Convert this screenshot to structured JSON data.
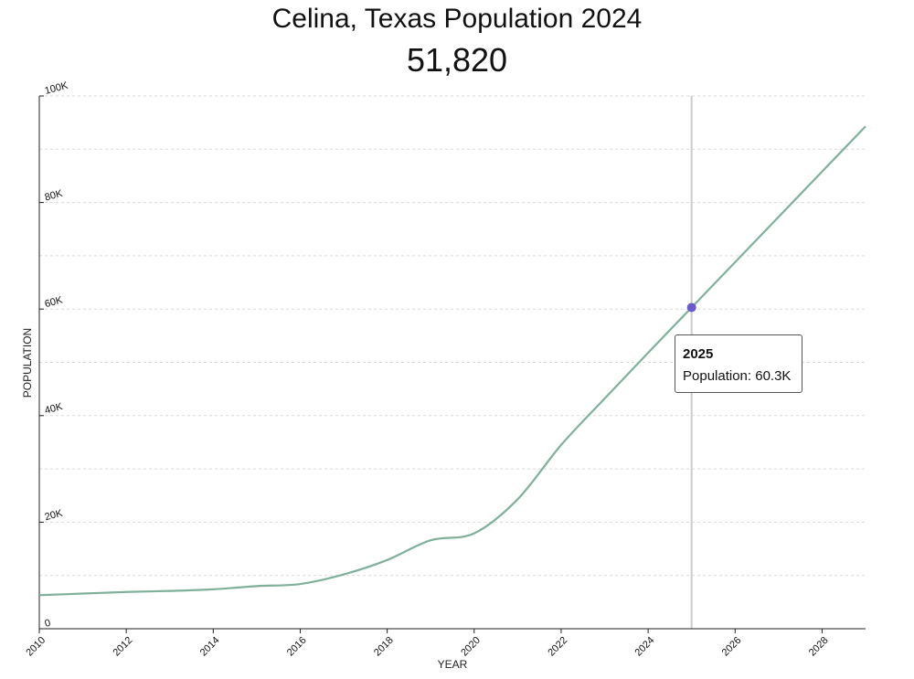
{
  "header": {
    "title": "Celina, Texas Population 2024",
    "value": "51,820"
  },
  "tooltip": {
    "year": "2025",
    "label": "Population:",
    "value": "60.3K"
  },
  "colors": {
    "line": "#7fb09a",
    "marker": "#6a5acd",
    "crosshair": "#cccccc"
  },
  "chart_data": {
    "type": "line",
    "title": "Celina, Texas Population 2024",
    "xlabel": "YEAR",
    "ylabel": "POPULATION",
    "xlim": [
      2010,
      2029
    ],
    "ylim": [
      0,
      100000
    ],
    "x_ticks": [
      2010,
      2012,
      2014,
      2016,
      2018,
      2020,
      2022,
      2024,
      2026,
      2028
    ],
    "x_tick_labels": [
      "2010",
      "2012",
      "2014",
      "2016",
      "2018",
      "2020",
      "2022",
      "2024",
      "2026",
      "2028"
    ],
    "y_ticks": [
      0,
      20000,
      40000,
      60000,
      80000,
      100000
    ],
    "y_tick_labels": [
      "0",
      "20K",
      "40K",
      "60K",
      "80K",
      "100K"
    ],
    "grid": true,
    "series": [
      {
        "x": [
          2010,
          2011,
          2012,
          2013,
          2014,
          2015,
          2016,
          2017,
          2018,
          2019,
          2020,
          2021,
          2022,
          2023,
          2024,
          2025,
          2026,
          2027,
          2028,
          2029
        ],
        "values": [
          6300,
          6600,
          6900,
          7100,
          7400,
          8000,
          8400,
          10200,
          12900,
          16600,
          17900,
          24300,
          34500,
          43200,
          51800,
          60300,
          68800,
          77300,
          85800,
          94300
        ]
      }
    ],
    "highlight": {
      "x": 2025,
      "value": 60300
    }
  }
}
